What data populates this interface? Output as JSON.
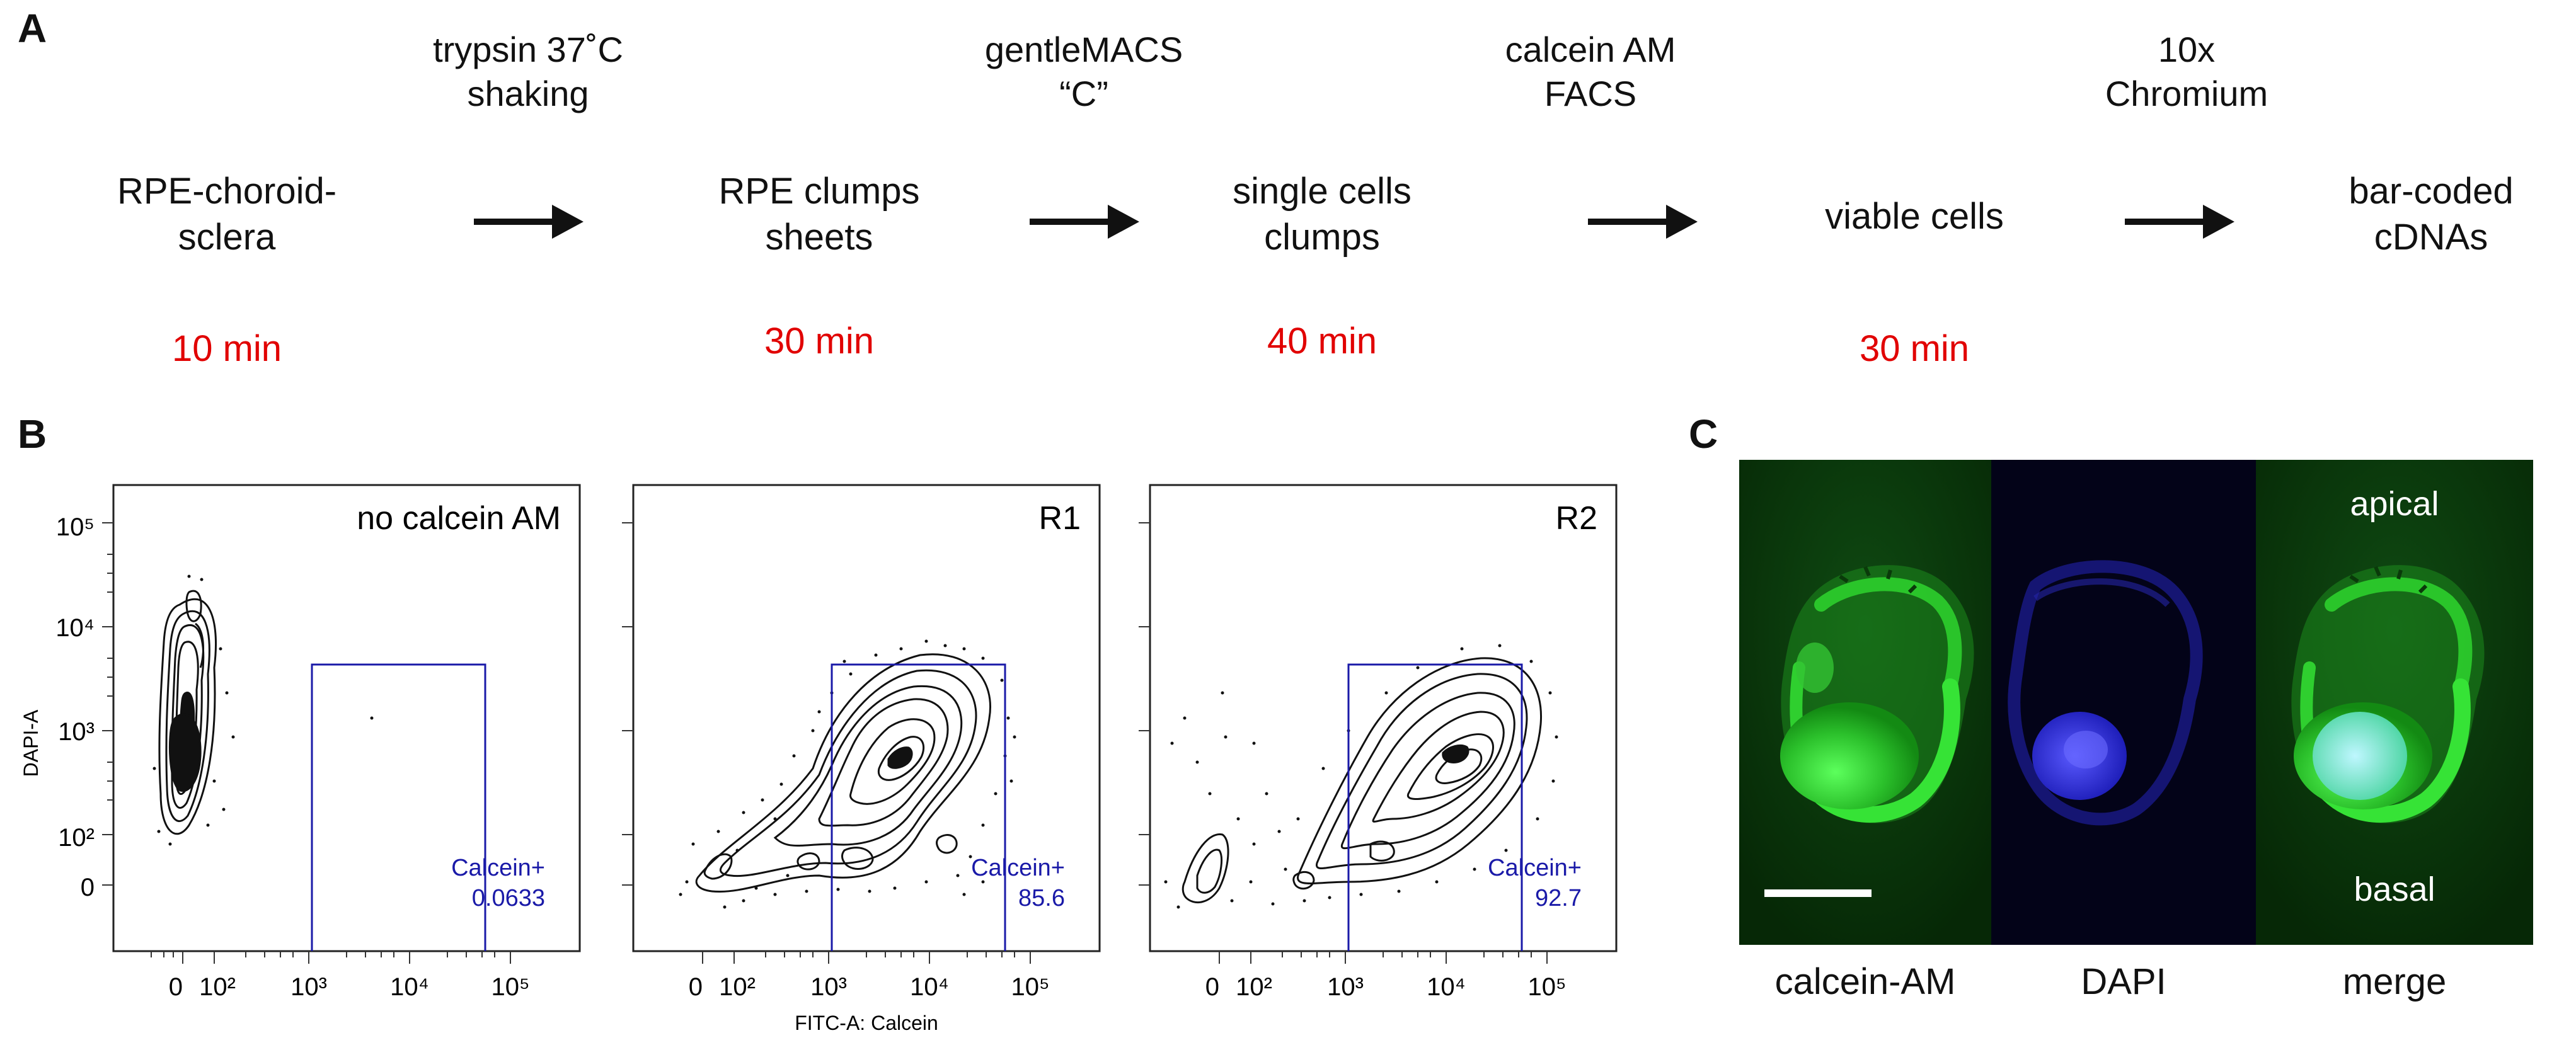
{
  "panel_a": {
    "letter": "A",
    "steps": [
      {
        "label_line1": "RPE-choroid-",
        "label_line2": "sclera",
        "time": "10 min"
      },
      {
        "label_line1": "RPE clumps",
        "label_line2": "sheets",
        "time": "30 min"
      },
      {
        "label_line1": "single cells",
        "label_line2": "clumps",
        "time": "40 min"
      },
      {
        "label_line1": "viable cells",
        "label_line2": "",
        "time": "30 min"
      },
      {
        "label_line1": "bar-coded",
        "label_line2": "cDNAs",
        "time": ""
      }
    ],
    "transitions": [
      {
        "line1": "trypsin 37˚C",
        "line2": "shaking"
      },
      {
        "line1": "gentleMACS",
        "line2": "“C”"
      },
      {
        "line1": "calcein AM",
        "line2": "FACS"
      },
      {
        "line1": "10x",
        "line2": "Chromium"
      }
    ]
  },
  "panel_b": {
    "letter": "B",
    "y_axis_label": "DAPI-A",
    "x_axis_label": "FITC-A:  Calcein",
    "y_ticks": [
      "10⁵",
      "10⁴",
      "10³",
      "10²",
      "0"
    ],
    "x_ticks": [
      "0",
      "10²",
      "10³",
      "10⁴",
      "10⁵"
    ],
    "plots": [
      {
        "title": "no calcein AM",
        "gate_name": "Calcein+",
        "gate_value": "0.0633"
      },
      {
        "title": "R1",
        "gate_name": "Calcein+",
        "gate_value": "85.6"
      },
      {
        "title": "R2",
        "gate_name": "Calcein+",
        "gate_value": "92.7"
      }
    ]
  },
  "panel_c": {
    "letter": "C",
    "captions": [
      "calcein-AM",
      "DAPI",
      "merge"
    ],
    "apical_label": "apical",
    "basal_label": "basal"
  },
  "colors": {
    "time": "#e10000",
    "gate": "#1a1aa8",
    "green": "#3ddc3d",
    "blue": "#2a2ad8"
  }
}
